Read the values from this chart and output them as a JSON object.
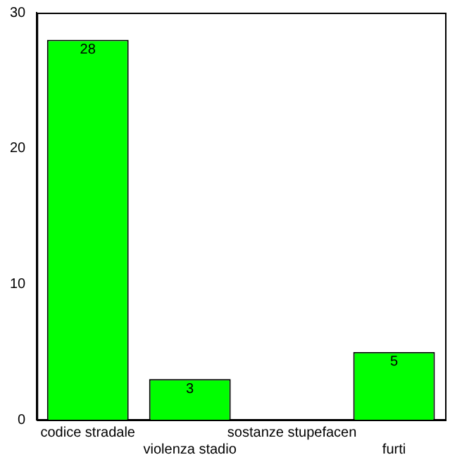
{
  "chart_data": {
    "type": "bar",
    "categories": [
      "codice stradale",
      "violenza stadio",
      "sostanze stupefacen",
      "furti"
    ],
    "values": [
      28,
      3,
      0,
      5
    ],
    "value_labels": [
      "28",
      "3",
      null,
      "5"
    ],
    "color": "#00ff00",
    "ylim": [
      0,
      30
    ],
    "yticks": [
      0,
      10,
      20,
      30
    ],
    "grid": false,
    "legend": false
  }
}
